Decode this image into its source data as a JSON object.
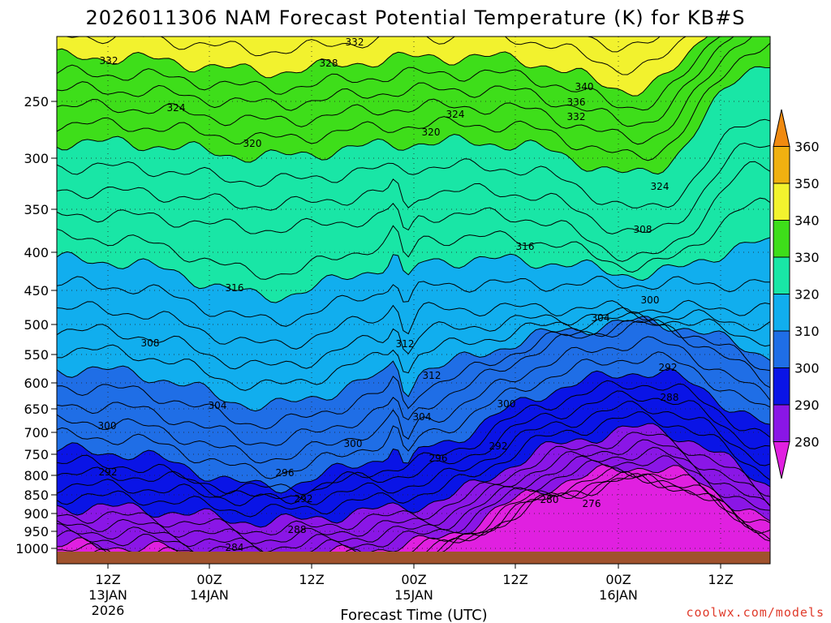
{
  "chart_data": {
    "type": "heatmap",
    "title": "2026011306 NAM Forecast Potential Temperature (K) for KB#S",
    "xlabel": "Forecast Time (UTC)",
    "ylabel": "",
    "credit": "coolwx.com/models",
    "y_axis": {
      "scale": "pressure (hPa)",
      "ylim": [
        1000,
        200
      ],
      "ticks": [
        "250",
        "300",
        "350",
        "400",
        "450",
        "500",
        "550",
        "600",
        "650",
        "700",
        "750",
        "800",
        "850",
        "900",
        "950",
        "1000"
      ]
    },
    "x_axis": {
      "ticks": [
        {
          "line1": "12Z",
          "line2": "13JAN",
          "line3": "2026"
        },
        {
          "line1": "00Z",
          "line2": "14JAN",
          "line3": ""
        },
        {
          "line1": "12Z",
          "line2": "",
          "line3": ""
        },
        {
          "line1": "00Z",
          "line2": "15JAN",
          "line3": ""
        },
        {
          "line1": "12Z",
          "line2": "",
          "line3": ""
        },
        {
          "line1": "00Z",
          "line2": "16JAN",
          "line3": ""
        },
        {
          "line1": "12Z",
          "line2": "",
          "line3": ""
        }
      ]
    },
    "colorbar": {
      "levels": [
        "280",
        "290",
        "300",
        "310",
        "320",
        "330",
        "340",
        "350",
        "360"
      ],
      "colors": [
        "#e020e0",
        "#8a16e6",
        "#0a14e6",
        "#1f6ee6",
        "#11aeee",
        "#19e6a6",
        "#3ede1a",
        "#f2f22e",
        "#f0b010",
        "#f08a10"
      ]
    },
    "contour_labels": [
      {
        "text": "332"
      },
      {
        "text": "332"
      },
      {
        "text": "328"
      },
      {
        "text": "340"
      },
      {
        "text": "336"
      },
      {
        "text": "332"
      },
      {
        "text": "324"
      },
      {
        "text": "324"
      },
      {
        "text": "320"
      },
      {
        "text": "320"
      },
      {
        "text": "324"
      },
      {
        "text": "316"
      },
      {
        "text": "312"
      },
      {
        "text": "316"
      },
      {
        "text": "300"
      },
      {
        "text": "304"
      },
      {
        "text": "308"
      },
      {
        "text": "312"
      },
      {
        "text": "308"
      },
      {
        "text": "292"
      },
      {
        "text": "288"
      },
      {
        "text": "304"
      },
      {
        "text": "304"
      },
      {
        "text": "300"
      },
      {
        "text": "300"
      },
      {
        "text": "300"
      },
      {
        "text": "296"
      },
      {
        "text": "292"
      },
      {
        "text": "292"
      },
      {
        "text": "296"
      },
      {
        "text": "292"
      },
      {
        "text": "280"
      },
      {
        "text": "276"
      },
      {
        "text": "288"
      },
      {
        "text": "284"
      }
    ]
  }
}
